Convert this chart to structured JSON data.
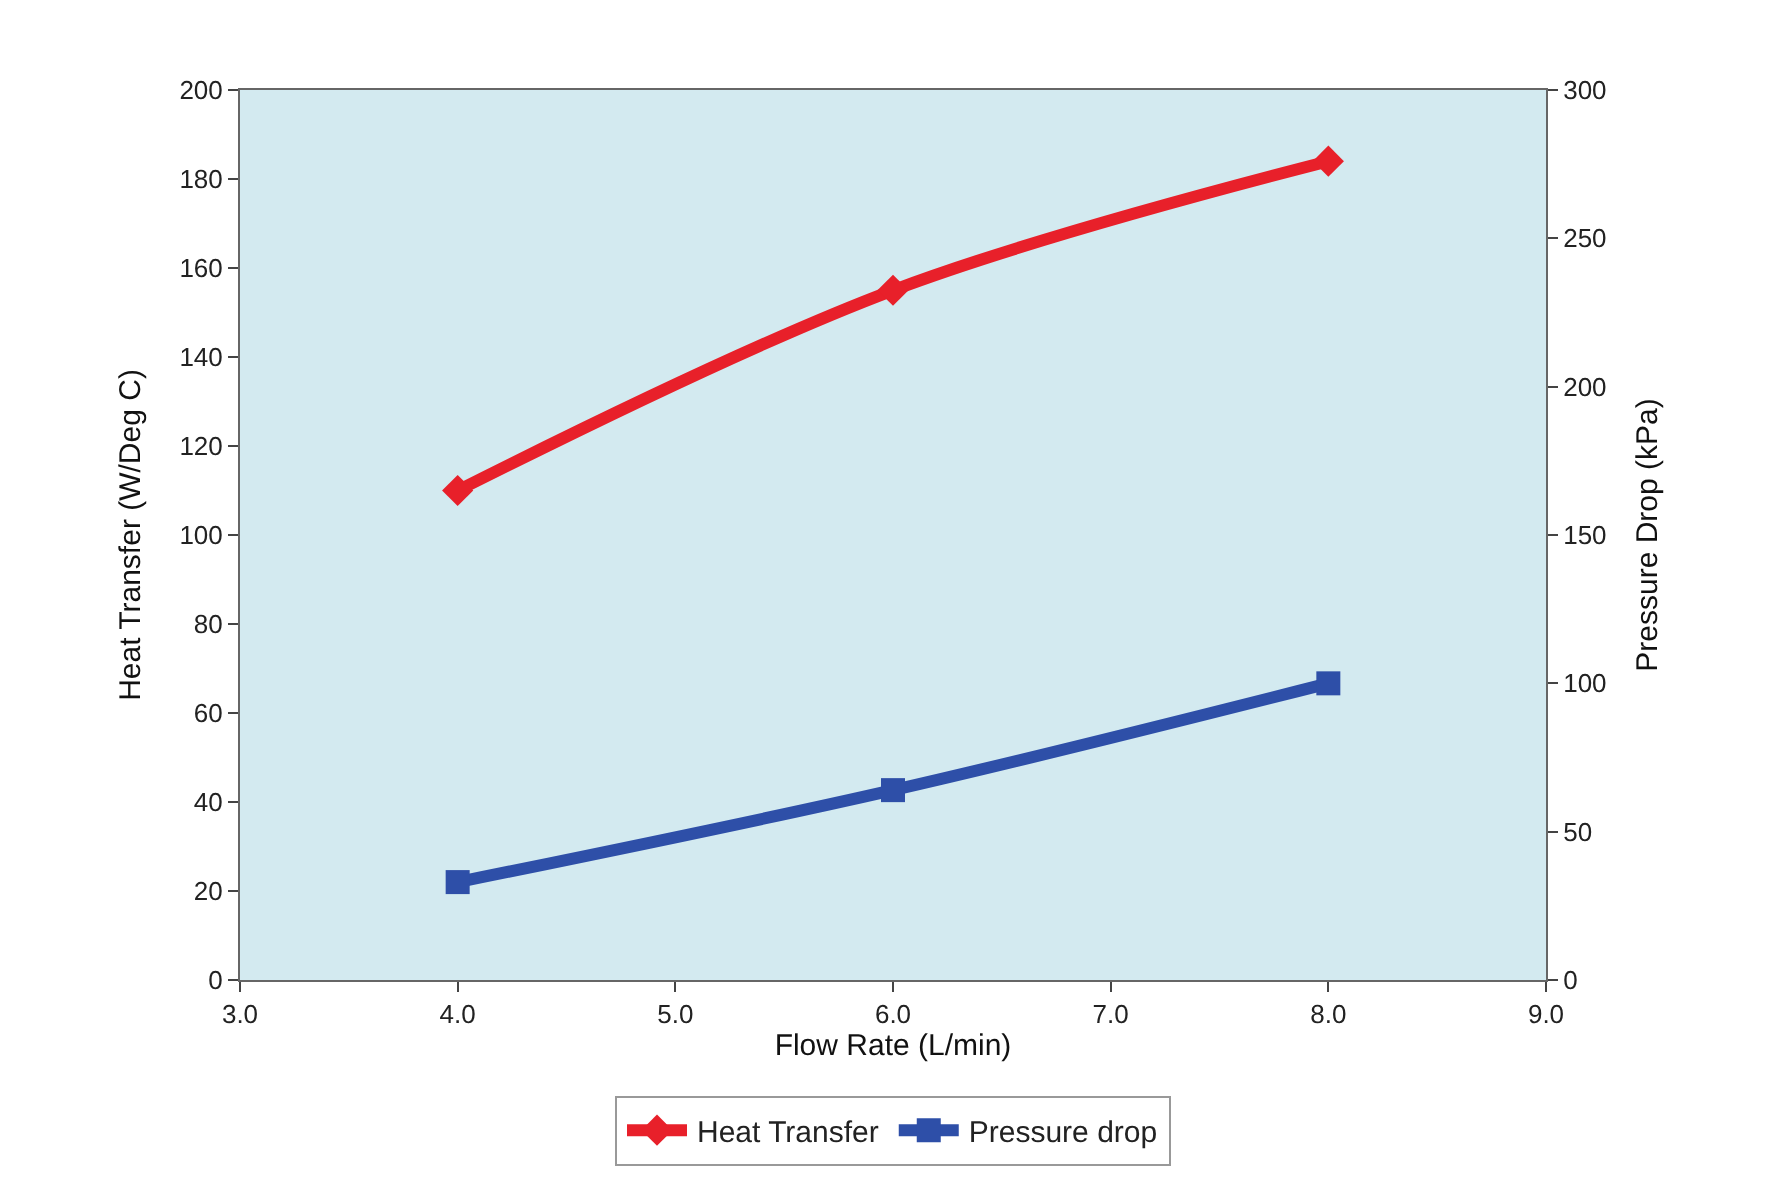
{
  "chart_data": {
    "type": "line",
    "xlabel": "Flow Rate (L/min)",
    "ylabel": "Heat Transfer (W/Deg C)",
    "y2label": "Pressure Drop (kPa)",
    "x": [
      4.0,
      6.0,
      8.0
    ],
    "series": [
      {
        "name": "Heat Transfer",
        "color": "#e8202a",
        "values": [
          110,
          155,
          184
        ],
        "marker": "diamond"
      },
      {
        "name": "Pressure drop",
        "color": "#2e4fa8",
        "values": [
          33,
          64,
          100
        ],
        "marker": "square",
        "axis": "y2"
      }
    ],
    "xlim": [
      3.0,
      9.0
    ],
    "xticks": [
      {
        "value": 3,
        "label": "3.0"
      },
      {
        "value": 4,
        "label": "4.0"
      },
      {
        "value": 5,
        "label": "5.0"
      },
      {
        "value": 6,
        "label": "6.0"
      },
      {
        "value": 7,
        "label": "7.0"
      },
      {
        "value": 8,
        "label": "8.0"
      },
      {
        "value": 9,
        "label": "9.0"
      }
    ],
    "ylim": [
      0,
      200
    ],
    "yticks": [
      0,
      20,
      40,
      60,
      80,
      100,
      120,
      140,
      160,
      180,
      200
    ],
    "y2lim": [
      0,
      300
    ],
    "y2ticks": [
      0,
      50,
      100,
      150,
      200,
      250,
      300
    ],
    "grid": false,
    "legend": "bottom",
    "line_style": "solid"
  }
}
